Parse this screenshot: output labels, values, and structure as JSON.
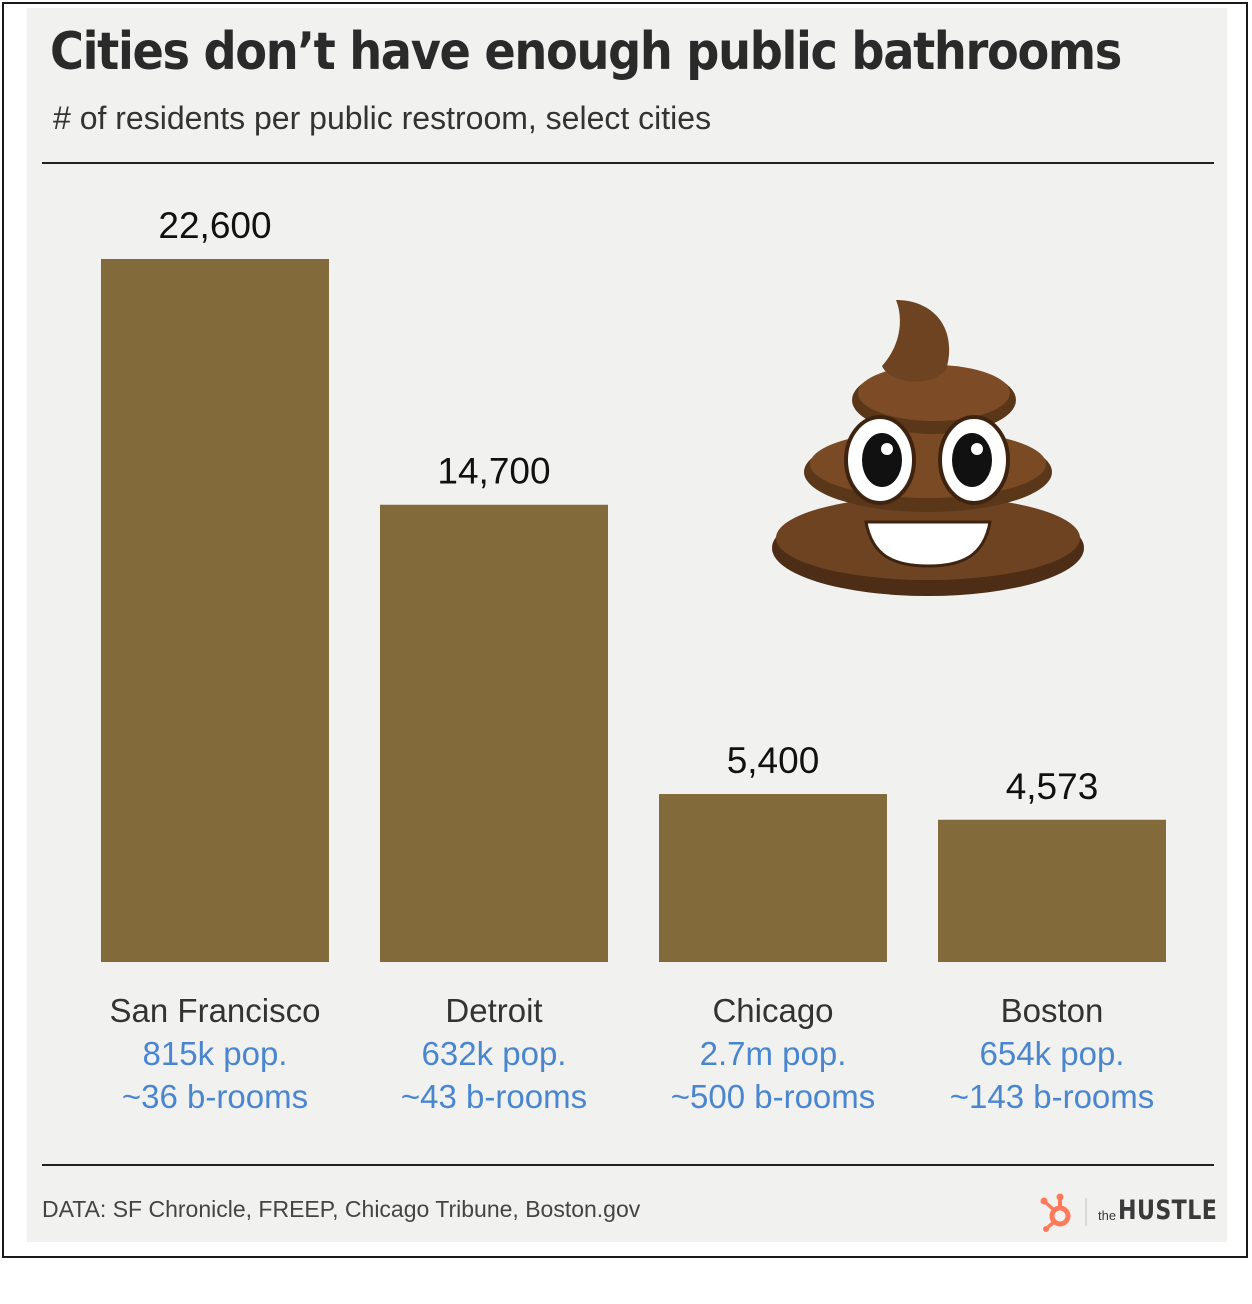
{
  "title": "Cities don’t have enough public bathrooms",
  "subtitle": "# of residents per public restroom, select cities",
  "source": "DATA: SF Chronicle, FREEP, Chicago Tribune, Boston.gov",
  "brand": {
    "prefix": "the",
    "name": "HUSTLE",
    "logo_icon": "hubspot-sprocket-icon"
  },
  "decoration_icon": "pile-of-poo-emoji-icon",
  "colors": {
    "bar": "#836a3a",
    "value_label": "#111111",
    "category_label": "#333333",
    "detail_label": "#4a86d0",
    "brand_orange": "#ff7a59"
  },
  "chart_data": {
    "type": "bar",
    "title": "Cities don’t have enough public bathrooms",
    "subtitle": "# of residents per public restroom, select cities",
    "categories": [
      "San Francisco",
      "Detroit",
      "Chicago",
      "Boston"
    ],
    "values": [
      22600,
      14700,
      5400,
      4573
    ],
    "value_labels": [
      "22,600",
      "14,700",
      "5,400",
      "4,573"
    ],
    "population_labels": [
      "815k pop.",
      "632k pop.",
      "2.7m pop.",
      "654k pop."
    ],
    "bathroom_labels": [
      "~36 b-rooms",
      "~43 b-rooms",
      "~500 b-rooms",
      "~143 b-rooms"
    ],
    "ylim": [
      0,
      22600
    ],
    "grid": false,
    "legend": "none"
  }
}
